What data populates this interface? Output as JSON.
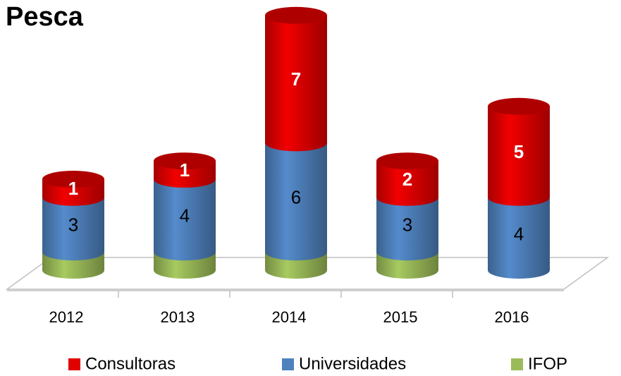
{
  "chart_data": {
    "type": "bar3d_stacked",
    "title": "Pesca",
    "categories": [
      "2012",
      "2013",
      "2014",
      "2015",
      "2016"
    ],
    "series": [
      {
        "name": "IFOP",
        "color": "#9bbb59",
        "values": [
          1,
          1,
          1,
          1,
          0
        ]
      },
      {
        "name": "Universidades",
        "color": "#4f81bd",
        "values": [
          3,
          4,
          6,
          3,
          4
        ]
      },
      {
        "name": "Consultoras",
        "color": "#e00000",
        "values": [
          1,
          1,
          7,
          2,
          5
        ]
      }
    ],
    "legend": "bottom"
  }
}
